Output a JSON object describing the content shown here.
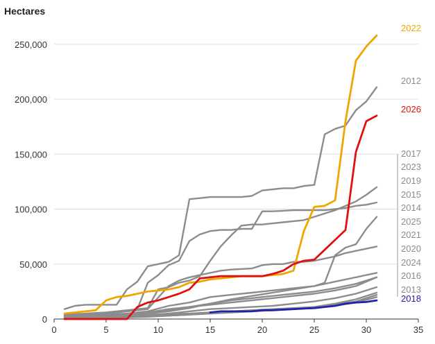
{
  "chart_data": {
    "type": "line",
    "title": "",
    "ylabel": "Hectares",
    "xlabel": "",
    "xlim": [
      0,
      35
    ],
    "ylim": [
      0,
      265000
    ],
    "x_ticks": [
      "0",
      "5",
      "10",
      "15",
      "20",
      "25",
      "30",
      "35"
    ],
    "y_ticks": [
      "0",
      "50,000",
      "100,000",
      "150,000",
      "200,000",
      "250,000"
    ],
    "grid": "horizontal",
    "legend": "labels at line ends (right)",
    "series": [
      {
        "name": "2012",
        "color": "#8c8c8c",
        "x": [
          1,
          2,
          3,
          4,
          5,
          6,
          7,
          8,
          9,
          10,
          11,
          12,
          13,
          14,
          15,
          16,
          17,
          18,
          19,
          20,
          21,
          22,
          23,
          24,
          25,
          26,
          27,
          28,
          29,
          30,
          31
        ],
        "values": [
          9000,
          12000,
          13000,
          13000,
          13000,
          13000,
          27000,
          34000,
          48000,
          50000,
          52000,
          58000,
          109000,
          110000,
          111000,
          111000,
          111000,
          111000,
          112000,
          117000,
          118000,
          119000,
          119000,
          121000,
          122000,
          168000,
          173000,
          176000,
          190000,
          198000,
          211000
        ]
      },
      {
        "name": "2013",
        "color": "#8c8c8c",
        "x": [
          1,
          3,
          5,
          7,
          9,
          11,
          13,
          15,
          17,
          19,
          21,
          23,
          25,
          27,
          29,
          31
        ],
        "values": [
          1000,
          1500,
          2000,
          3000,
          4000,
          4500,
          5000,
          6000,
          7000,
          8000,
          9000,
          10000,
          11000,
          14000,
          18000,
          24000
        ]
      },
      {
        "name": "2014",
        "color": "#8c8c8c",
        "x": [
          1,
          3,
          5,
          6,
          7,
          8,
          9,
          10,
          11,
          12,
          13,
          14,
          15,
          16,
          17,
          18,
          19,
          20,
          21,
          22,
          23,
          24,
          25,
          26,
          27,
          28,
          29,
          30,
          31
        ],
        "values": [
          2000,
          3000,
          5000,
          6000,
          7000,
          9000,
          33000,
          40000,
          49000,
          53000,
          71000,
          77000,
          80000,
          81000,
          81000,
          82000,
          82000,
          98000,
          98000,
          98500,
          99000,
          99000,
          99000,
          99000,
          100000,
          101000,
          103000,
          104000,
          106000
        ]
      },
      {
        "name": "2015",
        "color": "#8c8c8c",
        "x": [
          1,
          3,
          5,
          7,
          9,
          11,
          12,
          13,
          14,
          15,
          16,
          17,
          19,
          20,
          21,
          22,
          23,
          24,
          25,
          26,
          27,
          28,
          29,
          30,
          31
        ],
        "values": [
          3000,
          4000,
          5000,
          7000,
          9000,
          30000,
          35000,
          38000,
          40000,
          42000,
          44000,
          45000,
          46000,
          49000,
          50000,
          50000,
          52000,
          52000,
          53000,
          55000,
          57000,
          60000,
          62000,
          64000,
          66000
        ]
      },
      {
        "name": "2016",
        "color": "#8c8c8c",
        "x": [
          1,
          3,
          5,
          7,
          9,
          11,
          13,
          15,
          17,
          19,
          21,
          23,
          25,
          27,
          29,
          31
        ],
        "values": [
          2000,
          2500,
          3000,
          4000,
          6000,
          9000,
          11000,
          13000,
          15000,
          17000,
          19000,
          21000,
          23000,
          26000,
          30000,
          38000
        ]
      },
      {
        "name": "2017",
        "color": "#8c8c8c",
        "x": [
          1,
          3,
          5,
          7,
          9,
          10,
          11,
          12,
          13,
          14,
          15,
          16,
          17,
          18,
          19,
          20,
          21,
          22,
          23,
          24,
          25,
          26,
          27,
          28,
          29,
          30,
          31
        ],
        "values": [
          4000,
          5000,
          6000,
          8000,
          10000,
          27000,
          29000,
          33000,
          35000,
          39000,
          53000,
          66000,
          76000,
          85000,
          86000,
          86000,
          87000,
          88000,
          89000,
          90000,
          93000,
          96000,
          99000,
          103000,
          107000,
          113000,
          120000
        ]
      },
      {
        "name": "2018",
        "color": "#2222aa",
        "x": [
          15,
          16,
          17,
          18,
          19,
          20,
          21,
          22,
          23,
          24,
          25,
          26,
          27,
          28,
          29,
          30,
          31
        ],
        "values": [
          6000,
          7000,
          7000,
          7000,
          7000,
          8000,
          8000,
          8500,
          9000,
          9500,
          10000,
          11000,
          12000,
          14000,
          15000,
          15500,
          17000
        ]
      },
      {
        "name": "2019",
        "color": "#8c8c8c",
        "x": [
          1,
          3,
          5,
          7,
          9,
          11,
          13,
          15,
          17,
          19,
          21,
          23,
          25,
          26,
          27,
          28,
          29,
          30,
          31
        ],
        "values": [
          3000,
          3500,
          4000,
          5000,
          7000,
          12000,
          15000,
          20000,
          22000,
          24000,
          26000,
          28000,
          30000,
          32000,
          34000,
          36000,
          38000,
          40000,
          42000
        ]
      },
      {
        "name": "2020",
        "color": "#8c8c8c",
        "x": [
          1,
          3,
          5,
          7,
          9,
          11,
          13,
          15,
          17,
          19,
          21,
          23,
          25,
          27,
          29,
          31
        ],
        "values": [
          1500,
          2000,
          2500,
          3500,
          5000,
          7000,
          10000,
          14000,
          17000,
          19000,
          21000,
          23000,
          25000,
          28000,
          32000,
          38000
        ]
      },
      {
        "name": "2021",
        "color": "#8c8c8c",
        "x": [
          1,
          3,
          5,
          7,
          9,
          11,
          13,
          15,
          17,
          19,
          21,
          23,
          25,
          27,
          29,
          31
        ],
        "values": [
          1000,
          1500,
          2000,
          2500,
          3500,
          5000,
          7000,
          9000,
          10000,
          11000,
          12000,
          14000,
          16000,
          19000,
          23000,
          29000
        ]
      },
      {
        "name": "2022",
        "color": "#f0a500",
        "x": [
          1,
          2,
          3,
          4,
          5,
          6,
          7,
          8,
          9,
          10,
          11,
          12,
          13,
          14,
          15,
          16,
          17,
          18,
          19,
          20,
          21,
          22,
          23,
          24,
          25,
          26,
          27,
          28,
          29,
          30,
          31
        ],
        "values": [
          5000,
          6000,
          7000,
          8000,
          17000,
          20000,
          21000,
          23000,
          25000,
          26000,
          27000,
          29000,
          33000,
          34000,
          36000,
          37000,
          38000,
          39000,
          39000,
          39000,
          40000,
          41000,
          44000,
          80000,
          102000,
          103000,
          108000,
          180000,
          235000,
          248000,
          258000
        ]
      },
      {
        "name": "2023",
        "color": "#8c8c8c",
        "x": [
          1,
          3,
          5,
          7,
          9,
          11,
          13,
          15,
          17,
          19,
          21,
          23,
          25,
          26,
          27,
          28,
          29,
          30,
          31
        ],
        "values": [
          1500,
          2000,
          3000,
          4000,
          6000,
          8000,
          11000,
          14000,
          18000,
          21000,
          24000,
          27000,
          30000,
          33000,
          58000,
          65000,
          68000,
          82000,
          93000
        ]
      },
      {
        "name": "2024",
        "color": "#8c8c8c",
        "x": [
          1,
          3,
          5,
          7,
          9,
          11,
          13,
          15,
          17,
          19,
          21,
          23,
          25,
          27,
          29,
          31
        ],
        "values": [
          1000,
          1200,
          1500,
          2000,
          2500,
          3000,
          4000,
          5000,
          6000,
          7000,
          8000,
          9000,
          10000,
          12000,
          15000,
          20000
        ]
      },
      {
        "name": "2025",
        "color": "#8c8c8c",
        "x": [
          1,
          3,
          5,
          7,
          9,
          11,
          13,
          15,
          17,
          19,
          21,
          23,
          25,
          27,
          29,
          31
        ],
        "values": [
          500,
          800,
          1000,
          1500,
          2000,
          3000,
          4000,
          5000,
          6000,
          7000,
          8000,
          9000,
          10000,
          13000,
          16000,
          22000
        ]
      },
      {
        "name": "2026",
        "color": "#dd1111",
        "x": [
          1,
          2,
          3,
          4,
          5,
          6,
          7,
          8,
          9,
          10,
          11,
          12,
          13,
          14,
          15,
          16,
          17,
          18,
          19,
          20,
          21,
          22,
          23,
          24,
          25,
          26,
          27,
          28,
          29,
          30,
          31
        ],
        "values": [
          0,
          0,
          0,
          0,
          0,
          0,
          0,
          11000,
          15000,
          17000,
          20000,
          23000,
          27000,
          37000,
          38000,
          39000,
          39000,
          39000,
          39000,
          39000,
          41000,
          44000,
          50000,
          53000,
          54000,
          63000,
          72000,
          81000,
          152000,
          180000,
          185000
        ]
      }
    ],
    "end_labels": [
      {
        "text": "2022",
        "color": "#f0a500"
      },
      {
        "text": "2012",
        "color": "#8c8c8c"
      },
      {
        "text": "2026",
        "color": "#dd1111"
      },
      {
        "text": "2017",
        "color": "#8c8c8c"
      },
      {
        "text": "2023",
        "color": "#8c8c8c"
      },
      {
        "text": "2019",
        "color": "#8c8c8c"
      },
      {
        "text": "2015",
        "color": "#8c8c8c"
      },
      {
        "text": "2014",
        "color": "#8c8c8c"
      },
      {
        "text": "2025",
        "color": "#8c8c8c"
      },
      {
        "text": "2021",
        "color": "#8c8c8c"
      },
      {
        "text": "2020",
        "color": "#8c8c8c"
      },
      {
        "text": "2024",
        "color": "#8c8c8c"
      },
      {
        "text": "2016",
        "color": "#8c8c8c"
      },
      {
        "text": "2013",
        "color": "#8c8c8c"
      },
      {
        "text": "2018",
        "color": "#2222aa"
      }
    ]
  }
}
